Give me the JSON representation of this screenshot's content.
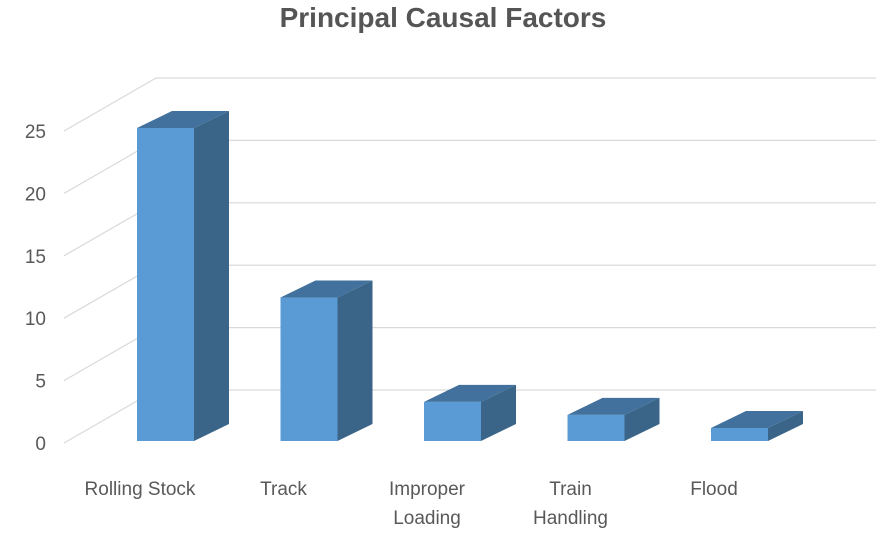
{
  "chart_data": {
    "type": "bar",
    "title": "Principal Causal Factors",
    "xlabel": "",
    "ylabel": "",
    "categories": [
      [
        "Rolling Stock"
      ],
      [
        "Track"
      ],
      [
        "Improper",
        "Loading"
      ],
      [
        "Train",
        "Handling"
      ],
      [
        "Flood"
      ]
    ],
    "values": [
      24,
      11,
      3,
      2,
      1
    ],
    "ylim": [
      0,
      25
    ],
    "yticks": [
      "0",
      "5",
      "10",
      "15",
      "20",
      "25"
    ],
    "grid": true,
    "style": "3d-column",
    "colors": {
      "front": "#5b9bd5",
      "side": "#3a6589",
      "top": "#41719c",
      "grid": "#d9d9d9"
    }
  }
}
